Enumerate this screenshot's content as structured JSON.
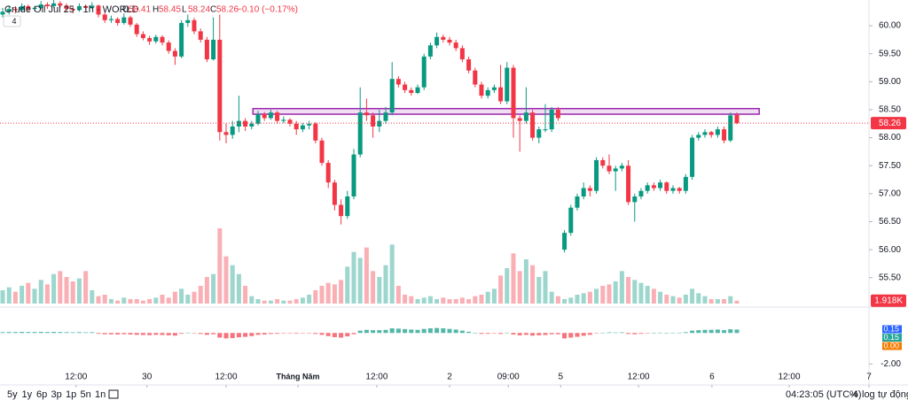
{
  "header": {
    "symbol": "Crude Oil Jul 25 · 1h · WORLD",
    "indicator_count": "4",
    "o": "O",
    "h": "H",
    "l": "L",
    "c": "C",
    "change": "−0.10 (−0.17%)"
  },
  "chart_data": {
    "type": "candlestick",
    "xlim": [
      -0.42,
      135.7
    ],
    "ylim": [
      54.99,
      60.46
    ],
    "yticks": [
      {
        "value": 60,
        "label": "60.00"
      },
      {
        "value": 59.5,
        "label": "59.50"
      },
      {
        "value": 59,
        "label": "59.00"
      },
      {
        "value": 58.5,
        "label": "58.50"
      },
      {
        "value": 58,
        "label": "58.00"
      },
      {
        "value": 57.5,
        "label": "57.50"
      },
      {
        "value": 57,
        "label": "57.00"
      },
      {
        "value": 56.5,
        "label": "56.50"
      },
      {
        "value": 56,
        "label": "56.00"
      },
      {
        "value": 55.5,
        "label": "55.50"
      }
    ],
    "xticks": [
      {
        "value": 11.5,
        "label": "12:00"
      },
      {
        "value": 22.6,
        "label": "30"
      },
      {
        "value": 35,
        "label": "12:00"
      },
      {
        "value": 46.25,
        "label": "Tháng Năm"
      },
      {
        "value": 58.6,
        "label": "12:00"
      },
      {
        "value": 70,
        "label": "2"
      },
      {
        "value": 79.2,
        "label": "09:00"
      },
      {
        "value": 87.4,
        "label": "5"
      },
      {
        "value": 99.6,
        "label": "12:00"
      },
      {
        "value": 111.1,
        "label": "6"
      },
      {
        "value": 123.2,
        "label": "12:00"
      },
      {
        "value": 135.7,
        "label": "7"
      }
    ],
    "up_color": "#089981",
    "down_color": "#f23645",
    "ohlc": [
      [
        60.2,
        60.32,
        60.15,
        60.25
      ],
      [
        60.25,
        60.36,
        60.2,
        60.3
      ],
      [
        60.3,
        60.35,
        60.22,
        60.28
      ],
      [
        60.28,
        60.4,
        60.25,
        60.35
      ],
      [
        60.35,
        60.38,
        60.25,
        60.3
      ],
      [
        60.3,
        60.36,
        60.26,
        60.32
      ],
      [
        60.32,
        60.44,
        60.3,
        60.38
      ],
      [
        60.38,
        60.42,
        60.3,
        60.35
      ],
      [
        60.35,
        60.46,
        60.32,
        60.4
      ],
      [
        60.4,
        60.44,
        60.32,
        60.36
      ],
      [
        60.36,
        60.4,
        60.25,
        60.3
      ],
      [
        60.3,
        60.34,
        60.22,
        60.28
      ],
      [
        60.28,
        60.4,
        60.25,
        60.35
      ],
      [
        60.35,
        60.38,
        60.28,
        60.32
      ],
      [
        60.32,
        60.42,
        60.3,
        60.36
      ],
      [
        60.36,
        60.38,
        60.15,
        60.2
      ],
      [
        60.2,
        60.24,
        60.05,
        60.1
      ],
      [
        60.1,
        60.18,
        60.05,
        60.12
      ],
      [
        60.12,
        60.15,
        60.0,
        60.05
      ],
      [
        60.05,
        60.22,
        60.02,
        60.15
      ],
      [
        60.15,
        60.18,
        59.98,
        60.02
      ],
      [
        60.02,
        60.05,
        59.8,
        59.85
      ],
      [
        59.85,
        59.9,
        59.74,
        59.78
      ],
      [
        59.78,
        59.82,
        59.66,
        59.72
      ],
      [
        59.72,
        59.84,
        59.68,
        59.8
      ],
      [
        59.8,
        59.83,
        59.65,
        59.7
      ],
      [
        59.7,
        59.74,
        59.5,
        59.55
      ],
      [
        59.55,
        59.6,
        59.3,
        59.45
      ],
      [
        59.45,
        60.1,
        59.42,
        60.05
      ],
      [
        60.05,
        60.2,
        59.98,
        60.1
      ],
      [
        60.1,
        60.14,
        59.85,
        59.9
      ],
      [
        59.9,
        59.95,
        59.7,
        59.75
      ],
      [
        59.75,
        59.8,
        59.35,
        59.4
      ],
      [
        59.4,
        60.15,
        59.38,
        59.75
      ],
      [
        59.75,
        60.2,
        57.95,
        58.1
      ],
      [
        58.1,
        58.25,
        57.9,
        58.05
      ],
      [
        58.05,
        58.3,
        57.98,
        58.2
      ],
      [
        58.2,
        58.75,
        58.1,
        58.3
      ],
      [
        58.3,
        58.35,
        58.12,
        58.2
      ],
      [
        58.2,
        58.3,
        58.15,
        58.25
      ],
      [
        58.25,
        58.48,
        58.22,
        58.42
      ],
      [
        58.42,
        58.46,
        58.3,
        58.35
      ],
      [
        58.35,
        58.5,
        58.32,
        58.45
      ],
      [
        58.45,
        58.48,
        58.25,
        58.3
      ],
      [
        58.3,
        58.38,
        58.26,
        58.32
      ],
      [
        58.32,
        58.35,
        58.2,
        58.25
      ],
      [
        58.25,
        58.3,
        58.05,
        58.15
      ],
      [
        58.15,
        58.26,
        58.1,
        58.22
      ],
      [
        58.22,
        58.3,
        58.15,
        58.25
      ],
      [
        58.25,
        58.28,
        57.9,
        57.95
      ],
      [
        57.95,
        58.0,
        57.5,
        57.55
      ],
      [
        57.55,
        57.6,
        57.1,
        57.2
      ],
      [
        57.2,
        57.25,
        56.7,
        56.8
      ],
      [
        56.8,
        56.9,
        56.45,
        56.6
      ],
      [
        56.6,
        57.05,
        56.55,
        56.95
      ],
      [
        56.95,
        57.8,
        56.9,
        57.7
      ],
      [
        57.7,
        58.9,
        57.65,
        58.45
      ],
      [
        58.45,
        58.7,
        58.3,
        58.4
      ],
      [
        58.4,
        58.45,
        58.0,
        58.2
      ],
      [
        58.2,
        58.5,
        58.1,
        58.3
      ],
      [
        58.3,
        58.55,
        58.25,
        58.45
      ],
      [
        58.45,
        59.35,
        58.4,
        59.05
      ],
      [
        59.05,
        59.1,
        58.9,
        58.95
      ],
      [
        58.95,
        59.0,
        58.8,
        58.85
      ],
      [
        58.85,
        58.9,
        58.75,
        58.8
      ],
      [
        58.8,
        58.95,
        58.78,
        58.9
      ],
      [
        58.9,
        59.5,
        58.85,
        59.45
      ],
      [
        59.45,
        59.7,
        59.4,
        59.65
      ],
      [
        59.65,
        59.88,
        59.6,
        59.8
      ],
      [
        59.8,
        59.84,
        59.7,
        59.75
      ],
      [
        59.75,
        59.8,
        59.65,
        59.7
      ],
      [
        59.7,
        59.75,
        59.55,
        59.6
      ],
      [
        59.6,
        59.65,
        59.35,
        59.4
      ],
      [
        59.4,
        59.45,
        59.15,
        59.2
      ],
      [
        59.2,
        59.25,
        58.9,
        58.95
      ],
      [
        58.95,
        59.0,
        58.7,
        58.75
      ],
      [
        58.75,
        58.9,
        58.7,
        58.85
      ],
      [
        58.85,
        58.95,
        58.8,
        58.9
      ],
      [
        58.9,
        59.3,
        58.6,
        58.65
      ],
      [
        58.65,
        59.35,
        58.6,
        59.25
      ],
      [
        59.25,
        59.3,
        58.0,
        58.35
      ],
      [
        58.35,
        58.4,
        57.75,
        58.3
      ],
      [
        58.3,
        58.9,
        58.25,
        58.45
      ],
      [
        58.45,
        58.5,
        57.95,
        58.0
      ],
      [
        58.0,
        58.2,
        57.9,
        58.15
      ],
      [
        58.15,
        58.6,
        58.1,
        58.15
      ],
      [
        58.15,
        58.55,
        58.1,
        58.5
      ],
      [
        58.5,
        58.55,
        58.3,
        58.35
      ],
      [
        56.0,
        56.35,
        55.95,
        56.3
      ],
      [
        56.3,
        56.8,
        56.25,
        56.75
      ],
      [
        56.75,
        57.0,
        56.7,
        56.95
      ],
      [
        56.95,
        57.2,
        56.9,
        57.1
      ],
      [
        57.1,
        57.15,
        56.95,
        57.05
      ],
      [
        57.05,
        57.65,
        57.0,
        57.6
      ],
      [
        57.6,
        57.65,
        57.45,
        57.5
      ],
      [
        57.5,
        57.7,
        57.35,
        57.4
      ],
      [
        57.4,
        57.5,
        57.05,
        57.45
      ],
      [
        57.45,
        57.55,
        57.4,
        57.5
      ],
      [
        57.5,
        57.6,
        56.8,
        56.85
      ],
      [
        56.85,
        57.0,
        56.5,
        56.95
      ],
      [
        56.95,
        57.1,
        56.9,
        57.05
      ],
      [
        57.05,
        57.2,
        57.0,
        57.15
      ],
      [
        57.15,
        57.2,
        57.05,
        57.1
      ],
      [
        57.1,
        57.25,
        57.05,
        57.2
      ],
      [
        57.2,
        57.22,
        57.0,
        57.05
      ],
      [
        57.05,
        57.15,
        57.0,
        57.1
      ],
      [
        57.1,
        57.12,
        57.0,
        57.05
      ],
      [
        57.05,
        57.35,
        57.0,
        57.3
      ],
      [
        57.3,
        58.05,
        57.25,
        58.0
      ],
      [
        58.0,
        58.1,
        57.95,
        58.05
      ],
      [
        58.05,
        58.15,
        58.0,
        58.1
      ],
      [
        58.1,
        58.12,
        58.0,
        58.05
      ],
      [
        58.05,
        58.2,
        58.0,
        58.15
      ],
      [
        58.15,
        58.2,
        57.9,
        57.95
      ],
      [
        57.95,
        58.45,
        57.92,
        58.4
      ],
      [
        58.41,
        58.45,
        58.24,
        58.26
      ]
    ],
    "last_price_label": "58.26",
    "zone": {
      "x": [
        39.2,
        118.5
      ],
      "y": [
        58.42,
        58.52
      ],
      "color": "#9c27b0"
    },
    "volume": {
      "ylim": [
        0,
        60
      ],
      "last_label": "1.918K",
      "values": [
        9,
        11,
        8,
        12,
        14,
        10,
        16,
        13,
        20,
        22,
        18,
        15,
        17,
        22,
        9,
        5,
        6,
        3,
        2,
        4,
        3,
        3,
        2,
        3,
        4,
        6,
        4,
        8,
        10,
        6,
        8,
        12,
        18,
        20,
        51,
        32,
        26,
        20,
        12,
        5,
        3,
        2,
        2,
        3,
        2,
        2,
        3,
        4,
        6,
        9,
        12,
        14,
        13,
        16,
        25,
        35,
        31,
        38,
        22,
        18,
        26,
        40,
        12,
        6,
        5,
        3,
        4,
        5,
        3,
        4,
        3,
        3,
        4,
        3,
        5,
        6,
        8,
        10,
        19,
        24,
        34,
        22,
        30,
        26,
        18,
        22,
        8,
        5,
        3,
        4,
        6,
        7,
        8,
        10,
        12,
        13,
        15,
        22,
        18,
        16,
        14,
        12,
        10,
        8,
        6,
        5,
        4,
        6,
        10,
        7,
        5,
        3,
        3,
        3,
        5,
        1.918
      ]
    },
    "indicator": {
      "ylim": [
        -2.5,
        1.5
      ],
      "yticks": [
        {
          "value": -2,
          "label": "-2.00"
        }
      ],
      "legend_values": [
        {
          "label": "0.15",
          "color": "#2962ff"
        },
        {
          "label": "0.15",
          "color": "#26a69a"
        },
        {
          "label": "0.00",
          "color": "#f57c00"
        }
      ],
      "hist": [
        0.05,
        0.06,
        0.06,
        0.07,
        0.06,
        0.06,
        0.07,
        0.06,
        0.07,
        0.06,
        0.05,
        0.04,
        0.05,
        0.04,
        0.05,
        -0.05,
        -0.08,
        -0.09,
        -0.1,
        -0.08,
        -0.1,
        -0.12,
        -0.13,
        -0.14,
        -0.12,
        -0.13,
        -0.15,
        -0.17,
        -0.05,
        0.02,
        -0.02,
        -0.06,
        -0.12,
        -0.08,
        -0.3,
        -0.35,
        -0.33,
        -0.28,
        -0.25,
        -0.2,
        -0.12,
        -0.1,
        -0.06,
        -0.05,
        -0.03,
        -0.03,
        -0.04,
        -0.02,
        -0.01,
        -0.06,
        -0.12,
        -0.2,
        -0.27,
        -0.3,
        -0.22,
        -0.08,
        0.15,
        0.2,
        0.18,
        0.18,
        0.2,
        0.3,
        0.28,
        0.25,
        0.22,
        0.2,
        0.26,
        0.3,
        0.32,
        0.3,
        0.26,
        0.22,
        0.15,
        0.08,
        0.0,
        -0.06,
        -0.05,
        -0.03,
        -0.06,
        0.02,
        -0.1,
        -0.15,
        -0.12,
        -0.17,
        -0.15,
        -0.13,
        -0.08,
        -0.08,
        -0.35,
        -0.3,
        -0.25,
        -0.18,
        -0.12,
        -0.02,
        0.02,
        0.04,
        0.03,
        0.04,
        -0.06,
        -0.08,
        -0.05,
        -0.02,
        0.0,
        0.02,
        0.01,
        0.02,
        0.02,
        0.05,
        0.15,
        0.18,
        0.2,
        0.2,
        0.22,
        0.18,
        0.24,
        0.22
      ]
    }
  },
  "toolbar": {
    "ranges": [
      "5y",
      "1y",
      "6p",
      "3p",
      "1p",
      "5n",
      "1n"
    ],
    "clock": "04:23:05 (UTC-4)",
    "percent": "%",
    "log": "log",
    "auto": "tự động"
  }
}
